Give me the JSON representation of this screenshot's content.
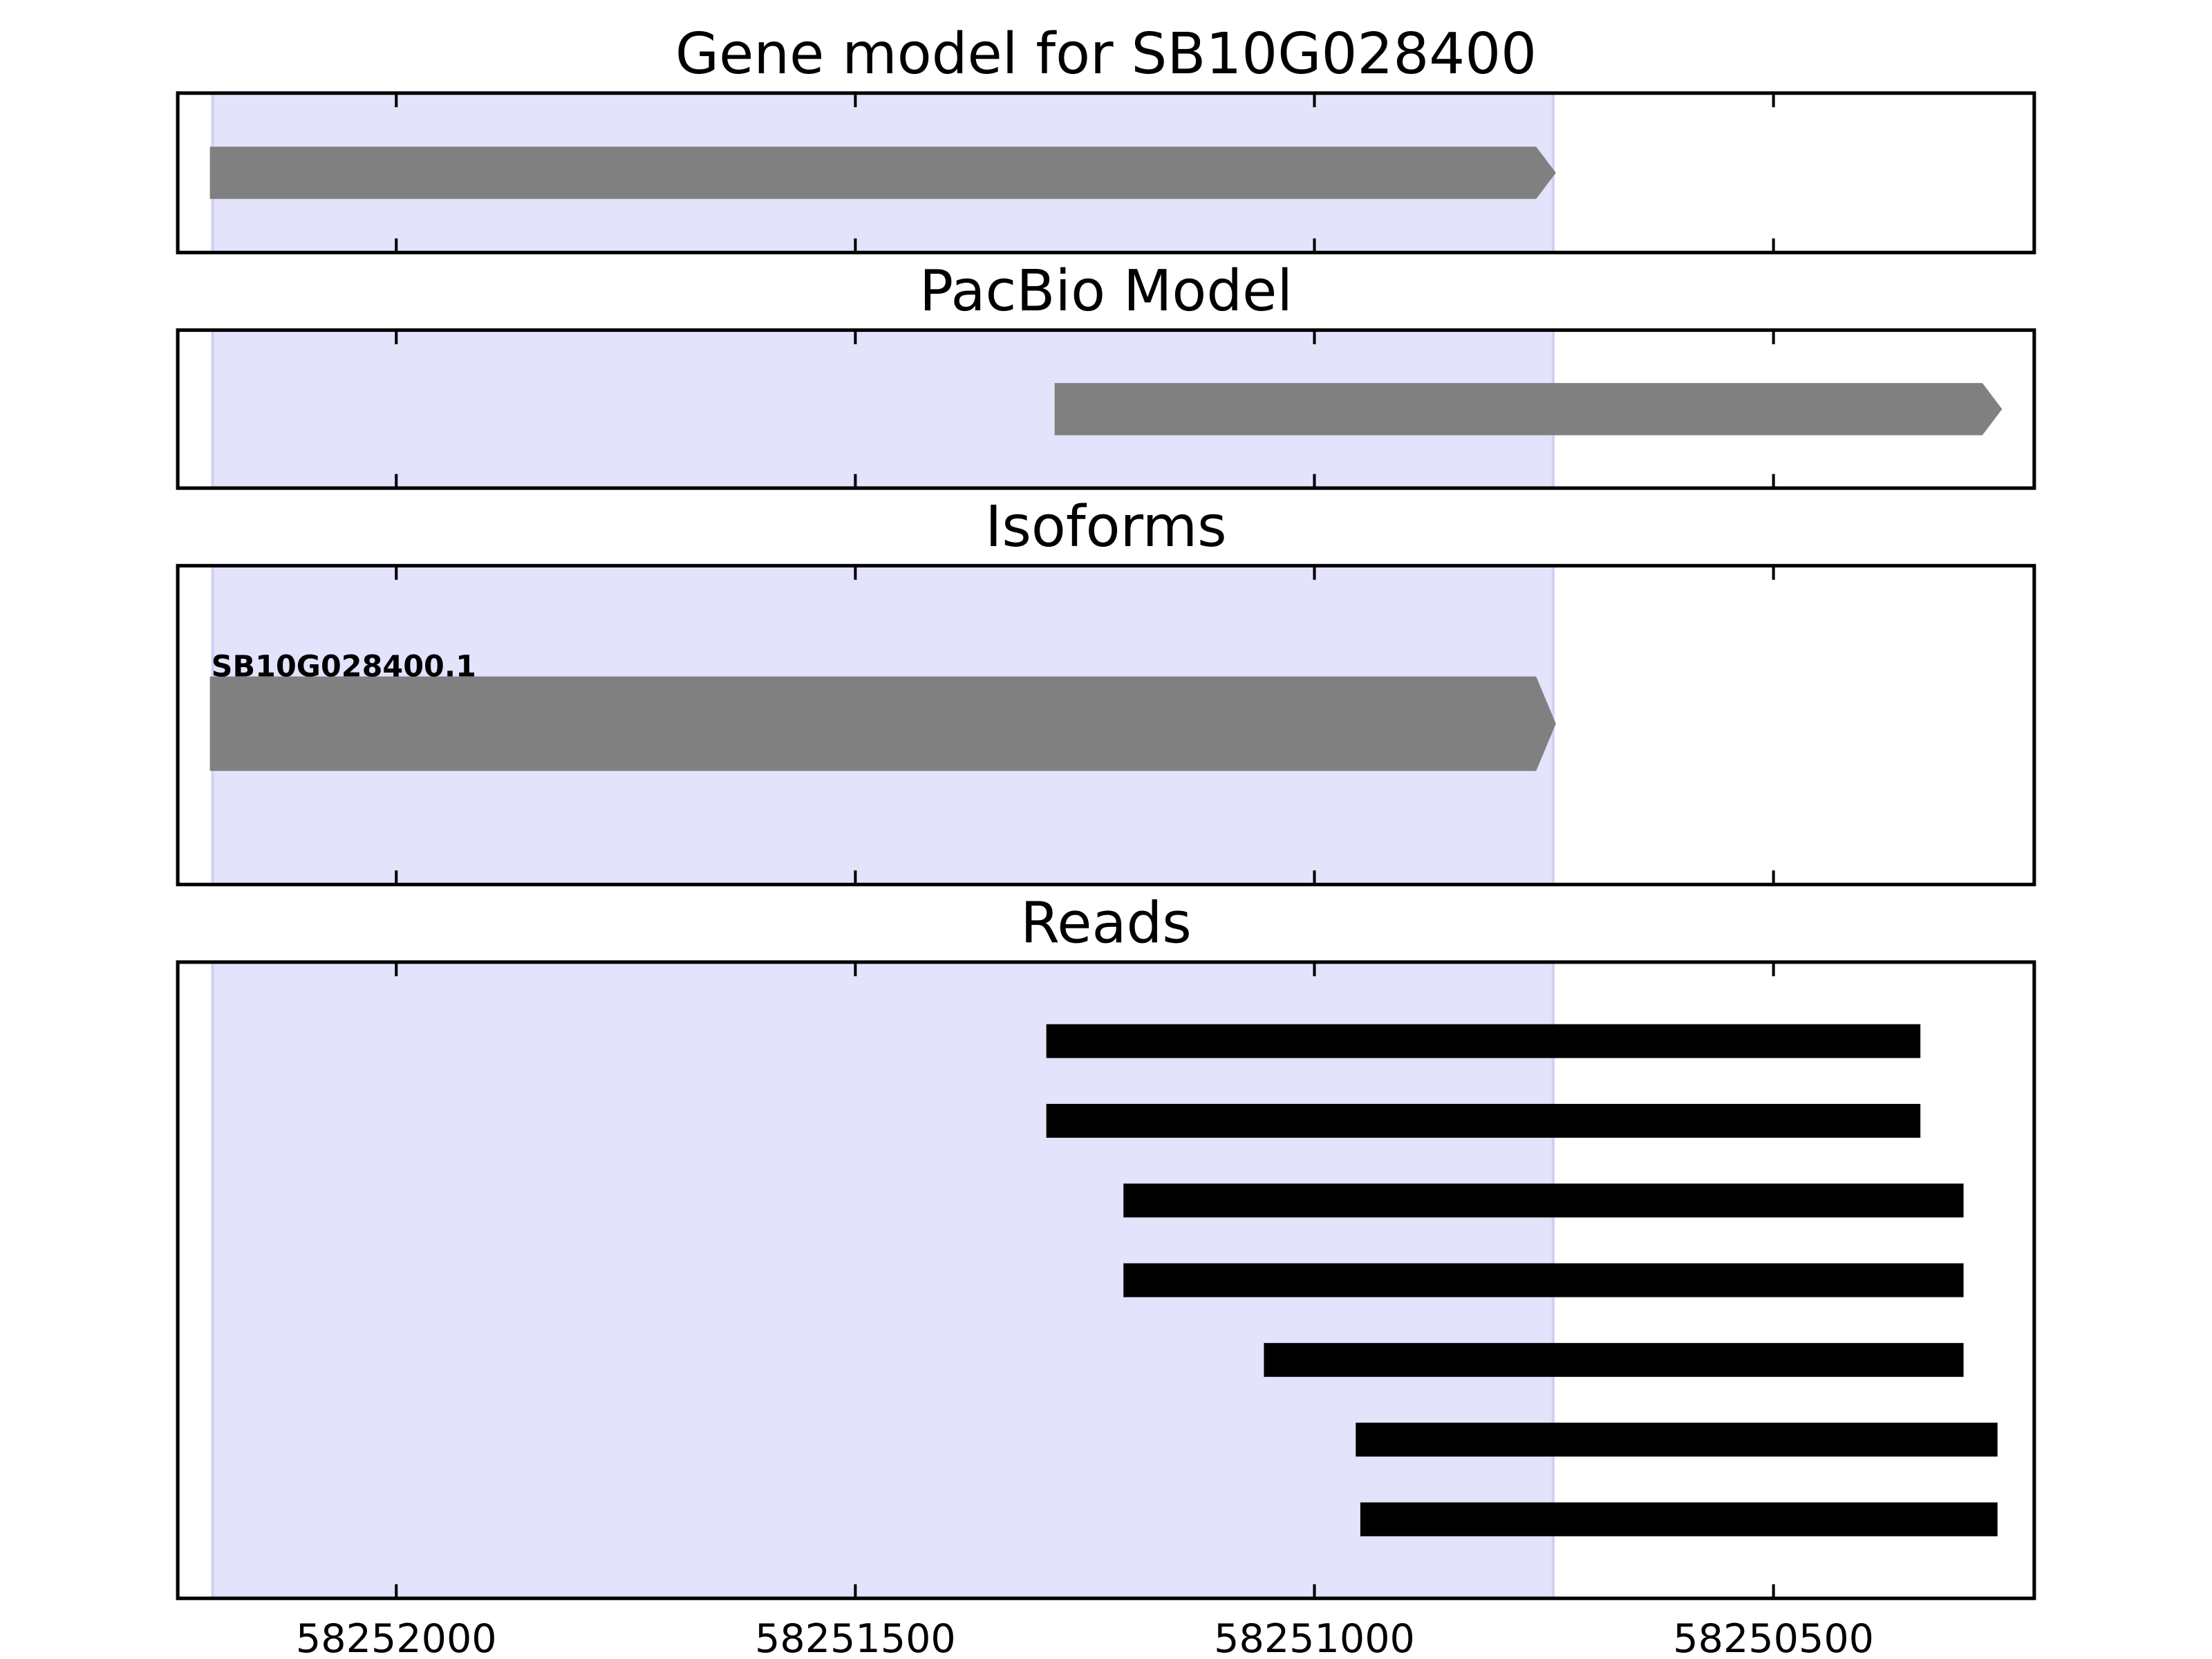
{
  "chart_data": {
    "type": "track",
    "xlim": [
      58252238,
      58250216
    ],
    "xticks": [
      58252000,
      58251500,
      58251000,
      58250500
    ],
    "highlight": [
      58252200,
      58250740
    ],
    "highlight_color": "#e3e3fc",
    "panels": [
      {
        "title": "Gene model for SB10G028400",
        "style": "arrow",
        "color": "#808080",
        "features": [
          {
            "start": 58252203,
            "end": 58250737
          }
        ]
      },
      {
        "title": "PacBio Model",
        "style": "arrow",
        "color": "#808080",
        "features": [
          {
            "start": 58251283,
            "end": 58250251
          }
        ]
      },
      {
        "title": "Isoforms",
        "style": "arrow",
        "color": "#808080",
        "features": [
          {
            "label": "SB10G028400.1",
            "start": 58252203,
            "end": 58250737
          }
        ]
      },
      {
        "title": "Reads",
        "style": "bar",
        "color": "#000000",
        "features": [
          {
            "start": 58251292,
            "end": 58250340
          },
          {
            "start": 58251292,
            "end": 58250340
          },
          {
            "start": 58251208,
            "end": 58250293
          },
          {
            "start": 58251208,
            "end": 58250293
          },
          {
            "start": 58251055,
            "end": 58250293
          },
          {
            "start": 58250955,
            "end": 58250256
          },
          {
            "start": 58250950,
            "end": 58250256
          }
        ]
      }
    ]
  }
}
